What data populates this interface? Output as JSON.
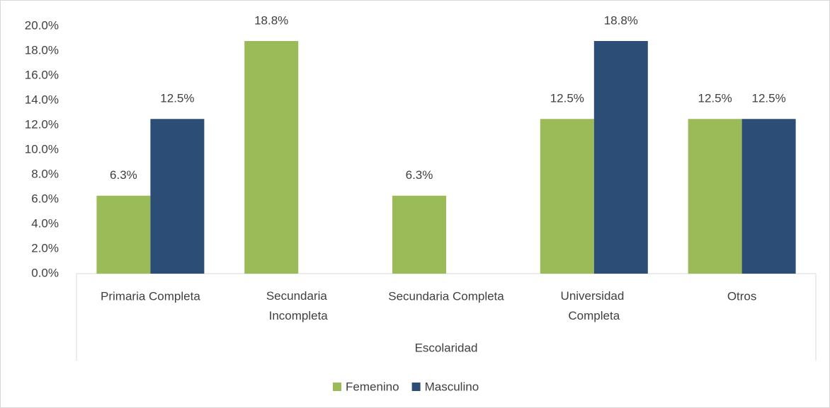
{
  "chart_data": {
    "type": "bar",
    "axis_group_label": "Escolaridad",
    "categories": [
      "Primaria Completa",
      "Secundaria Incompleta",
      "Secundaria Completa",
      "Universidad Completa",
      "Otros"
    ],
    "series": [
      {
        "name": "Femenino",
        "color": "#9bbb59",
        "values": [
          6.3,
          18.8,
          6.3,
          12.5,
          12.5
        ],
        "value_labels": [
          "6.3%",
          "18.8%",
          "6.3%",
          "12.5%",
          "12.5%"
        ]
      },
      {
        "name": "Masculino",
        "color": "#2c4d75",
        "values": [
          12.5,
          null,
          null,
          18.8,
          12.5
        ],
        "value_labels": [
          "12.5%",
          null,
          null,
          "18.8%",
          "12.5%"
        ]
      }
    ],
    "ylim": [
      0,
      20
    ],
    "yticks": [
      {
        "value": 0,
        "label": "0.0%"
      },
      {
        "value": 2,
        "label": "2.0%"
      },
      {
        "value": 4,
        "label": "4.0%"
      },
      {
        "value": 6,
        "label": "6.0%"
      },
      {
        "value": 8,
        "label": "8.0%"
      },
      {
        "value": 10,
        "label": "10.0%"
      },
      {
        "value": 12,
        "label": "12.0%"
      },
      {
        "value": 14,
        "label": "14.0%"
      },
      {
        "value": 16,
        "label": "16.0%"
      },
      {
        "value": 18,
        "label": "18.0%"
      },
      {
        "value": 20,
        "label": "20.0%"
      }
    ],
    "grid": false,
    "legend": "bottom"
  }
}
